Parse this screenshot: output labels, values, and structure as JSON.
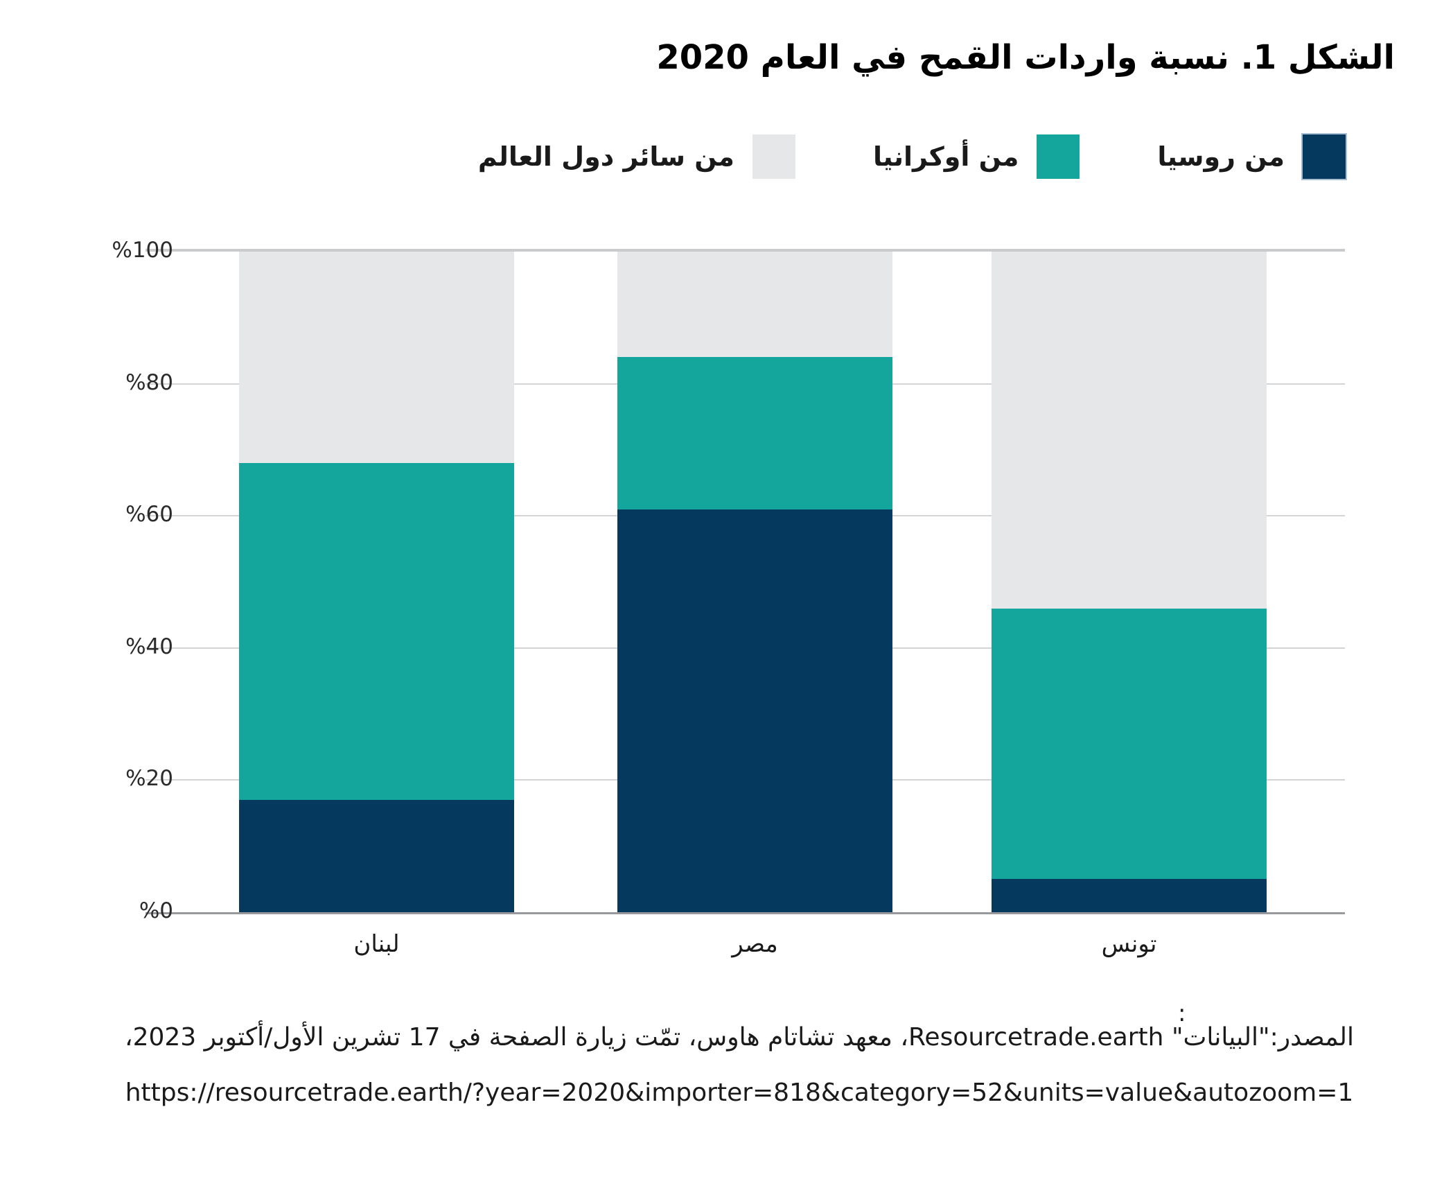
{
  "header": {
    "title": "الشكل 1. نسبة واردات القمح في العام 2020"
  },
  "chart_data": {
    "type": "bar",
    "stacked": true,
    "units": "percent",
    "title": "الشكل 1. نسبة واردات القمح في العام 2020",
    "categories": [
      "لبنان",
      "مصر",
      "تونس"
    ],
    "series": [
      {
        "key": "russia",
        "name": "من روسيا",
        "color": "#053A5E",
        "swatch_border": "#A9BFD1",
        "values": [
          17,
          61,
          5
        ]
      },
      {
        "key": "ukraine",
        "name": "من أوكرانيا",
        "color": "#14A69D",
        "values": [
          51,
          23,
          41
        ]
      },
      {
        "key": "world",
        "name": "من سائر دول العالم",
        "color": "#E6E7E8",
        "values": [
          32,
          16,
          54
        ]
      }
    ],
    "ylim": [
      0,
      100
    ],
    "yticks": [
      0,
      20,
      40,
      60,
      80,
      100
    ],
    "ytick_labels": [
      "%0",
      "%20",
      "%40",
      "%60",
      "%80",
      "%100"
    ],
    "grid": true,
    "legend_position": "top-right",
    "direction": "rtl"
  },
  "colors": {
    "background": "#ffffff",
    "gridline": "#d2d4d5",
    "gridline_top": "#c9cbcc",
    "axis": "#97999c",
    "text": "#1a1a1a"
  },
  "source": {
    "colon": ":",
    "line1": "المصدر:\"البيانات\" Resourcetrade.earth، معهد تشاتام هاوس، تمّت زيارة الصفحة في 17 تشرين الأول/أكتوبر 2023،",
    "line2": "https://resourcetrade.earth/?year=2020&importer=818&category=52&units=value&autozoom=1"
  }
}
